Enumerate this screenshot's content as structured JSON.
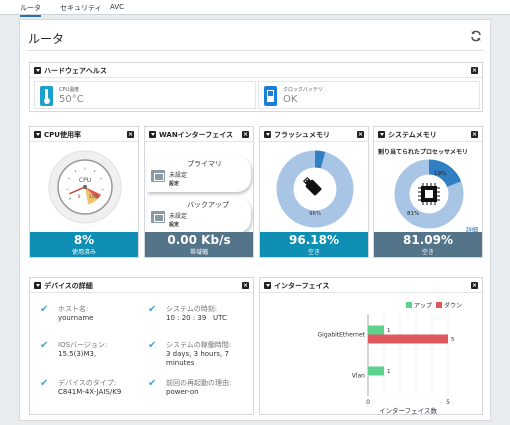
{
  "tabs": [
    "ルータ",
    "セキュリティ",
    "AVC"
  ],
  "page": {
    "title": "ルータ"
  },
  "hardware_health": {
    "title": "ハードウェアヘルス",
    "cpu_temp_label": "CPU温度",
    "cpu_temp_value": "50°C",
    "clock_battery_label": "クロックバッテリ",
    "clock_battery_value": "OK"
  },
  "cpu_usage": {
    "title": "CPU使用率",
    "gauge_label": "CPU",
    "gauge_max": "100",
    "gauge_zero": "0",
    "value": "8%",
    "caption": "使用済み",
    "percent": 8
  },
  "wan": {
    "title": "WANインターフェイス",
    "primary": {
      "title": "プライマリ",
      "status": "未設定",
      "action": "設定"
    },
    "backup": {
      "title": "バックアップ",
      "status": "未設定",
      "action": "設定"
    },
    "value": "0.00 Kb/s",
    "caption": "帯域幅"
  },
  "flash": {
    "title": "フラッシュメモリ",
    "free_pct_label": "96%",
    "value": "96.18%",
    "caption": "空き",
    "free_fraction": 0.9618
  },
  "sysmem": {
    "title": "システムメモリ",
    "subtitle": "割り当てられたプロセッサメモリ",
    "used_label": "19%",
    "free_label": "81%",
    "detail_link": "詳細",
    "value": "81.09%",
    "caption": "空き",
    "used_fraction": 0.19
  },
  "device_details": {
    "title": "デバイスの詳細",
    "items": [
      {
        "label": "ホスト名:",
        "value": "yourname"
      },
      {
        "label": "システムの時刻:",
        "value": "10 : 20 : 39   UTC"
      },
      {
        "label": "IOSバージョン:",
        "value": "15.5(3)M3,"
      },
      {
        "label": "システムの稼働時間:",
        "value": "3 days, 3 hours, 7 minutes"
      },
      {
        "label": "デバイスのタイプ:",
        "value": "C841M-4X-JAIS/K9"
      },
      {
        "label": "前回の再起動の理由:",
        "value": "power-on"
      }
    ]
  },
  "interfaces": {
    "title": "インターフェイス",
    "chart_data": {
      "type": "bar",
      "orientation": "horizontal",
      "categories": [
        "GigabitEthernet",
        "Vlan"
      ],
      "series": [
        {
          "name": "アップ",
          "color": "#5ed18d",
          "values": [
            1,
            1
          ]
        },
        {
          "name": "ダウン",
          "color": "#e0585d",
          "values": [
            5,
            0
          ]
        }
      ],
      "xlabel": "インターフェイス数",
      "xlim": [
        0,
        5
      ],
      "xticks": [
        0,
        1,
        2,
        3,
        4,
        5
      ],
      "xtick_labels": [
        "0",
        "",
        "",
        "",
        "",
        "5"
      ],
      "legend": "top-right"
    }
  },
  "colors": {
    "teal": "#0f8fb3",
    "slate": "#54748a",
    "donut_light": "#a9c5e6",
    "donut_dark": "#2f7fc2"
  }
}
